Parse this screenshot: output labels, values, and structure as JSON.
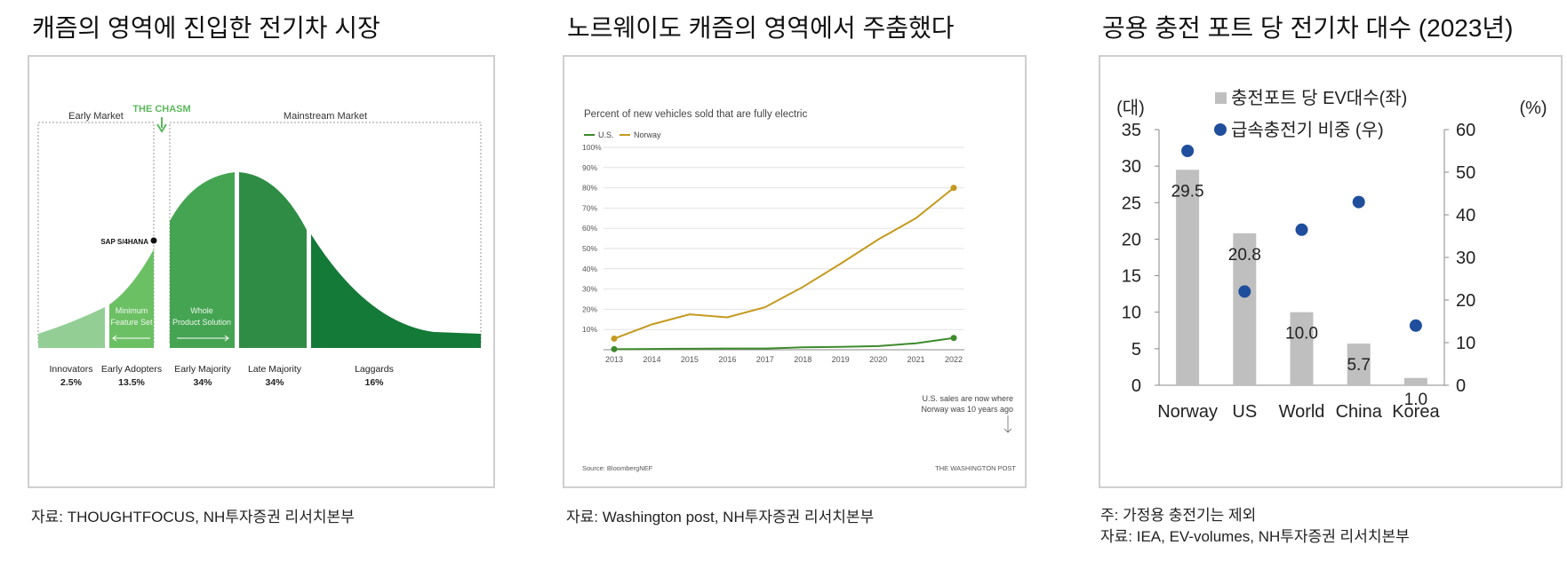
{
  "panels": {
    "chasm": {
      "title": "캐즘의 영역에 진입한 전기차 시장",
      "source": "자료: THOUGHTFOCUS, NH투자증권 리서치본부"
    },
    "norway": {
      "title": "노르웨이도 캐즘의 영역에서 주춤했다",
      "source": "자료: Washington post, NH투자증권 리서치본부"
    },
    "ports": {
      "title": "공용 충전 포트 당 전기차 대수 (2023년)",
      "note": "주: 가정용 충전기는 제외",
      "source": "자료: IEA, EV-volumes, NH투자증권 리서치본부"
    }
  },
  "chart_data": [
    {
      "type": "area",
      "labels": {
        "early_market": "Early Market",
        "chasm": "THE CHASM",
        "mainstream_market": "Mainstream Market",
        "marker": "SAP S/4HANA",
        "minimum_feature_set": [
          "Minimum",
          "Feature Set"
        ],
        "whole_product_solution": [
          "Whole",
          "Product Solution"
        ]
      },
      "segments": [
        {
          "name": "Innovators",
          "value": "2.5%",
          "color": "#93cf95"
        },
        {
          "name": "Early Adopters",
          "value": "13.5%",
          "color": "#6cc064"
        },
        {
          "name": "Early Majority",
          "value": "34%",
          "color": "#45a452"
        },
        {
          "name": "Late Majority",
          "value": "34%",
          "color": "#2f8c45"
        },
        {
          "name": "Laggards",
          "value": "16%",
          "color": "#137a37"
        }
      ]
    },
    {
      "type": "line",
      "title": "Percent of new vehicles sold that are fully electric",
      "x": [
        2013,
        2014,
        2015,
        2016,
        2017,
        2018,
        2019,
        2020,
        2021,
        2022
      ],
      "ylim": [
        0,
        100
      ],
      "yticks": [
        "100%",
        "90%",
        "80%",
        "70%",
        "60%",
        "50%",
        "40%",
        "30%",
        "20%",
        "10%"
      ],
      "series": [
        {
          "name": "U.S.",
          "color": "#3e8a2d",
          "values": [
            0.3,
            0.4,
            0.5,
            0.6,
            0.6,
            1.2,
            1.4,
            1.8,
            3.2,
            5.8
          ]
        },
        {
          "name": "Norway",
          "color": "#c49a1e",
          "values": [
            5.5,
            12.5,
            17.5,
            16,
            21,
            31,
            42.5,
            54.5,
            65,
            80
          ]
        }
      ],
      "annotation": [
        "U.S. sales are now where",
        "Norway was 10 years ago"
      ],
      "source": "Source: BloombergNEF",
      "credit": "THE WASHINGTON POST"
    },
    {
      "type": "bar",
      "categories": [
        "Norway",
        "US",
        "World",
        "China",
        "Korea"
      ],
      "series": [
        {
          "name": "충전포트 당 EV대수(좌)",
          "kind": "bar",
          "axis": "left",
          "color": "#bfbfbf",
          "values": [
            29.5,
            20.8,
            10.0,
            5.7,
            1.0
          ]
        },
        {
          "name": "급속충전기 비중 (우)",
          "kind": "scatter",
          "axis": "right",
          "color": "#1f4e9c",
          "values": [
            55,
            22,
            36.5,
            43,
            14
          ]
        }
      ],
      "data_labels": [
        "29.5",
        "20.8",
        "10.0",
        "5.7",
        "1.0"
      ],
      "ylabel_left": "(대)",
      "ylabel_right": "(%)",
      "ylim_left": [
        0,
        35
      ],
      "ylim_right": [
        0,
        60
      ],
      "yticks_left": [
        0,
        5,
        10,
        15,
        20,
        25,
        30,
        35
      ],
      "yticks_right": [
        0,
        10,
        20,
        30,
        40,
        50,
        60
      ]
    }
  ]
}
